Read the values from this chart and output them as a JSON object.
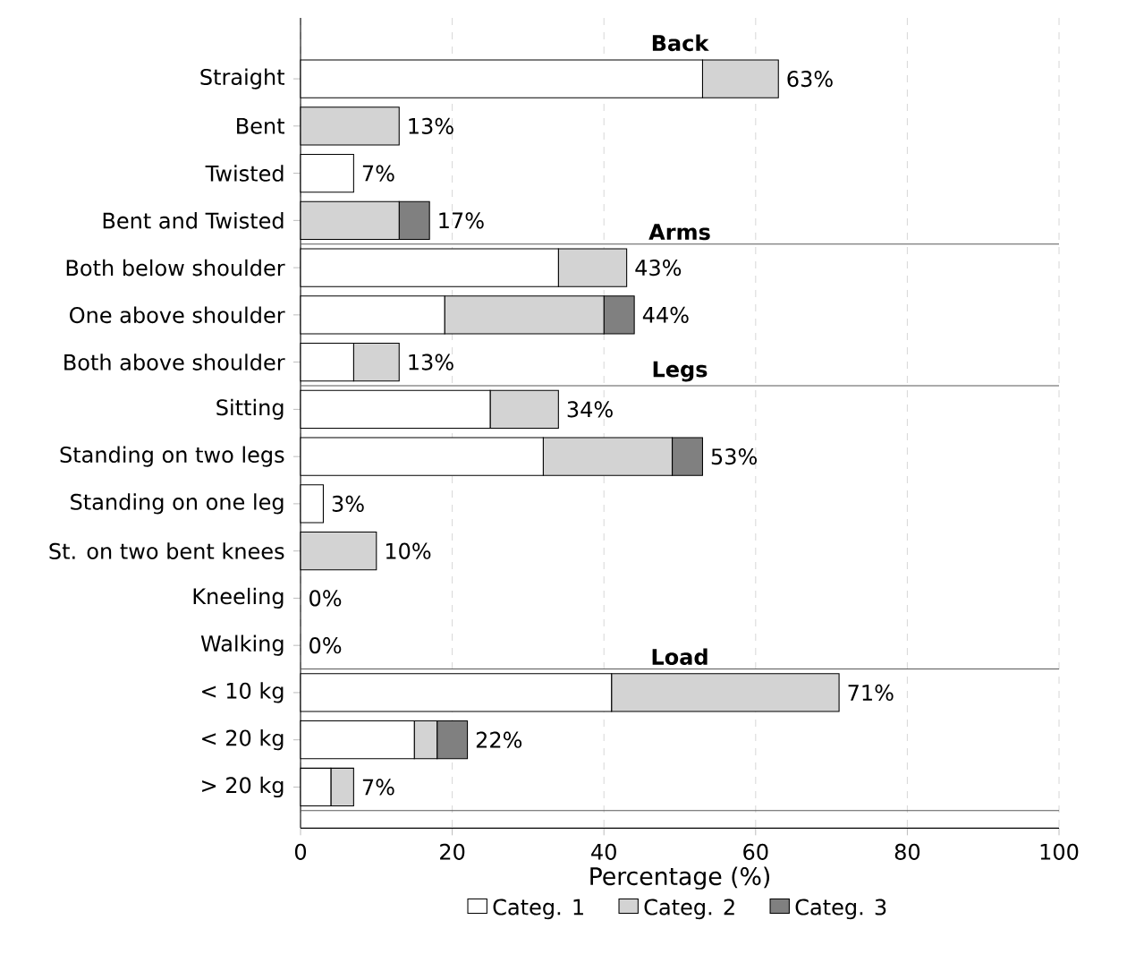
{
  "chart_data": {
    "type": "bar",
    "orientation": "horizontal",
    "stacked": true,
    "xlabel": "Percentage (%)",
    "categories": [
      "Straight",
      "Bent",
      "Twisted",
      "Bent and Twisted",
      "Both below shoulder",
      "One above shoulder",
      "Both above shoulder",
      "Sitting",
      "Standing on two legs",
      "Standing on one leg",
      "St. on two bent knees",
      "Kneeling",
      "Walking",
      "< 10 kg",
      "< 20 kg",
      "> 20 kg"
    ],
    "series": [
      {
        "name": "Categ. 1",
        "color": "#ffffff",
        "values": [
          53,
          0,
          7,
          0,
          34,
          19,
          7,
          25,
          32,
          3,
          0,
          0,
          0,
          41,
          15,
          4
        ]
      },
      {
        "name": "Categ. 2",
        "color": "#d3d3d3",
        "values": [
          10,
          13,
          0,
          13,
          9,
          21,
          6,
          9,
          17,
          0,
          10,
          0,
          0,
          30,
          3,
          3
        ]
      },
      {
        "name": "Categ. 3",
        "color": "#808080",
        "values": [
          0,
          0,
          0,
          4,
          0,
          4,
          0,
          0,
          4,
          0,
          0,
          0,
          0,
          0,
          4,
          0
        ]
      }
    ],
    "totals": [
      "63%",
      "13%",
      "7%",
      "17%",
      "43%",
      "44%",
      "13%",
      "34%",
      "53%",
      "3%",
      "10%",
      "0%",
      "0%",
      "71%",
      "22%",
      "7%"
    ],
    "annotations": [
      "Back",
      "Arms",
      "Legs",
      "Load"
    ],
    "xlim": [
      0,
      100
    ],
    "xticks": [
      0,
      20,
      40,
      60,
      80,
      100
    ],
    "grid": "x",
    "legend": "bottom"
  }
}
